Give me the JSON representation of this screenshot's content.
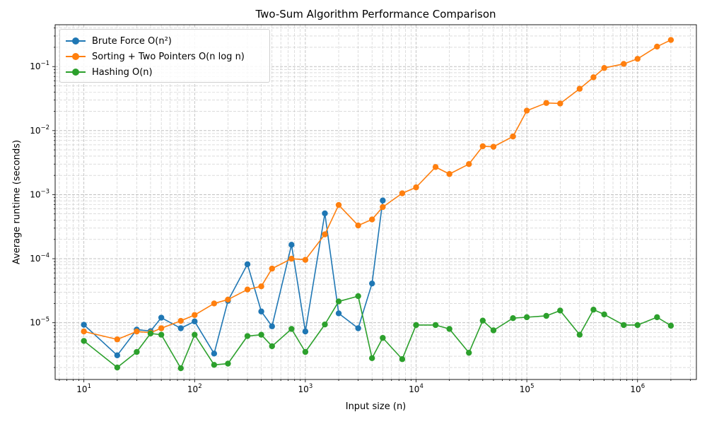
{
  "chart_data": {
    "type": "line",
    "title": "Two-Sum Algorithm Performance Comparison",
    "xlabel": "Input size (n)",
    "ylabel": "Average runtime (seconds)",
    "xscale": "log",
    "yscale": "log",
    "xlim": [
      5.5,
      3400000
    ],
    "ylim": [
      1.3e-06,
      0.45
    ],
    "grid": true,
    "legend_position": "top-left",
    "x_ticks": [
      {
        "value": 10,
        "base": "10",
        "exp": "1"
      },
      {
        "value": 100,
        "base": "10",
        "exp": "2"
      },
      {
        "value": 1000,
        "base": "10",
        "exp": "3"
      },
      {
        "value": 10000,
        "base": "10",
        "exp": "4"
      },
      {
        "value": 100000,
        "base": "10",
        "exp": "5"
      },
      {
        "value": 1000000,
        "base": "10",
        "exp": "6"
      }
    ],
    "y_ticks": [
      {
        "value": 1e-05,
        "base": "10",
        "exp": "−5"
      },
      {
        "value": 0.0001,
        "base": "10",
        "exp": "−4"
      },
      {
        "value": 0.001,
        "base": "10",
        "exp": "−3"
      },
      {
        "value": 0.01,
        "base": "10",
        "exp": "−2"
      },
      {
        "value": 0.1,
        "base": "10",
        "exp": "−1"
      }
    ],
    "series": [
      {
        "name": "Brute Force O(n²)",
        "color": "#1f77b4",
        "x": [
          10,
          20,
          30,
          40,
          50,
          75,
          100,
          150,
          200,
          300,
          400,
          500,
          750,
          1000,
          1500,
          2000,
          3000,
          4000,
          5000
        ],
        "y": [
          9.3e-06,
          3.1e-06,
          7.8e-06,
          7.4e-06,
          1.2e-05,
          8.2e-06,
          1.05e-05,
          3.3e-06,
          2.2e-05,
          8.2e-05,
          1.5e-05,
          8.8e-06,
          0.000165,
          7.3e-06,
          0.00051,
          1.4e-05,
          8.2e-06,
          4.1e-05,
          0.00081
        ]
      },
      {
        "name": "Sorting + Two Pointers O(n log n)",
        "color": "#ff7f0e",
        "x": [
          10,
          20,
          30,
          40,
          50,
          75,
          100,
          150,
          200,
          300,
          400,
          500,
          750,
          1000,
          1500,
          2000,
          3000,
          4000,
          5000,
          7500,
          10000,
          15000,
          20000,
          30000,
          40000,
          50000,
          75000,
          100000,
          150000,
          200000,
          300000,
          400000,
          500000,
          750000,
          1000000,
          1500000,
          2000000
        ],
        "y": [
          7.3e-06,
          5.5e-06,
          7.3e-06,
          7e-06,
          8.2e-06,
          1.07e-05,
          1.32e-05,
          2e-05,
          2.3e-05,
          3.3e-05,
          3.7e-05,
          7e-05,
          0.0001,
          9.6e-05,
          0.00024,
          0.00069,
          0.00033,
          0.00041,
          0.00064,
          0.00105,
          0.0013,
          0.0027,
          0.0021,
          0.003,
          0.0057,
          0.0056,
          0.0081,
          0.0205,
          0.027,
          0.0265,
          0.045,
          0.068,
          0.095,
          0.11,
          0.132,
          0.205,
          0.26
        ]
      },
      {
        "name": "Hashing O(n)",
        "color": "#2ca02c",
        "x": [
          10,
          20,
          30,
          40,
          50,
          75,
          100,
          150,
          200,
          300,
          400,
          500,
          750,
          1000,
          1500,
          2000,
          3000,
          4000,
          5000,
          7500,
          10000,
          15000,
          20000,
          30000,
          40000,
          50000,
          75000,
          100000,
          150000,
          200000,
          300000,
          400000,
          500000,
          750000,
          1000000,
          1500000,
          2000000
        ],
        "y": [
          5.2e-06,
          2e-06,
          3.5e-06,
          6.8e-06,
          6.5e-06,
          1.95e-06,
          6.5e-06,
          2.2e-06,
          2.3e-06,
          6.2e-06,
          6.5e-06,
          4.3e-06,
          8e-06,
          3.5e-06,
          9.4e-06,
          2.15e-05,
          2.6e-05,
          2.8e-06,
          5.8e-06,
          2.7e-06,
          9.2e-06,
          9.2e-06,
          8e-06,
          3.4e-06,
          1.08e-05,
          7.6e-06,
          1.18e-05,
          1.22e-05,
          1.28e-05,
          1.55e-05,
          6.5e-06,
          1.6e-05,
          1.35e-05,
          9.2e-06,
          9.2e-06,
          1.22e-05,
          9e-06
        ]
      }
    ]
  }
}
